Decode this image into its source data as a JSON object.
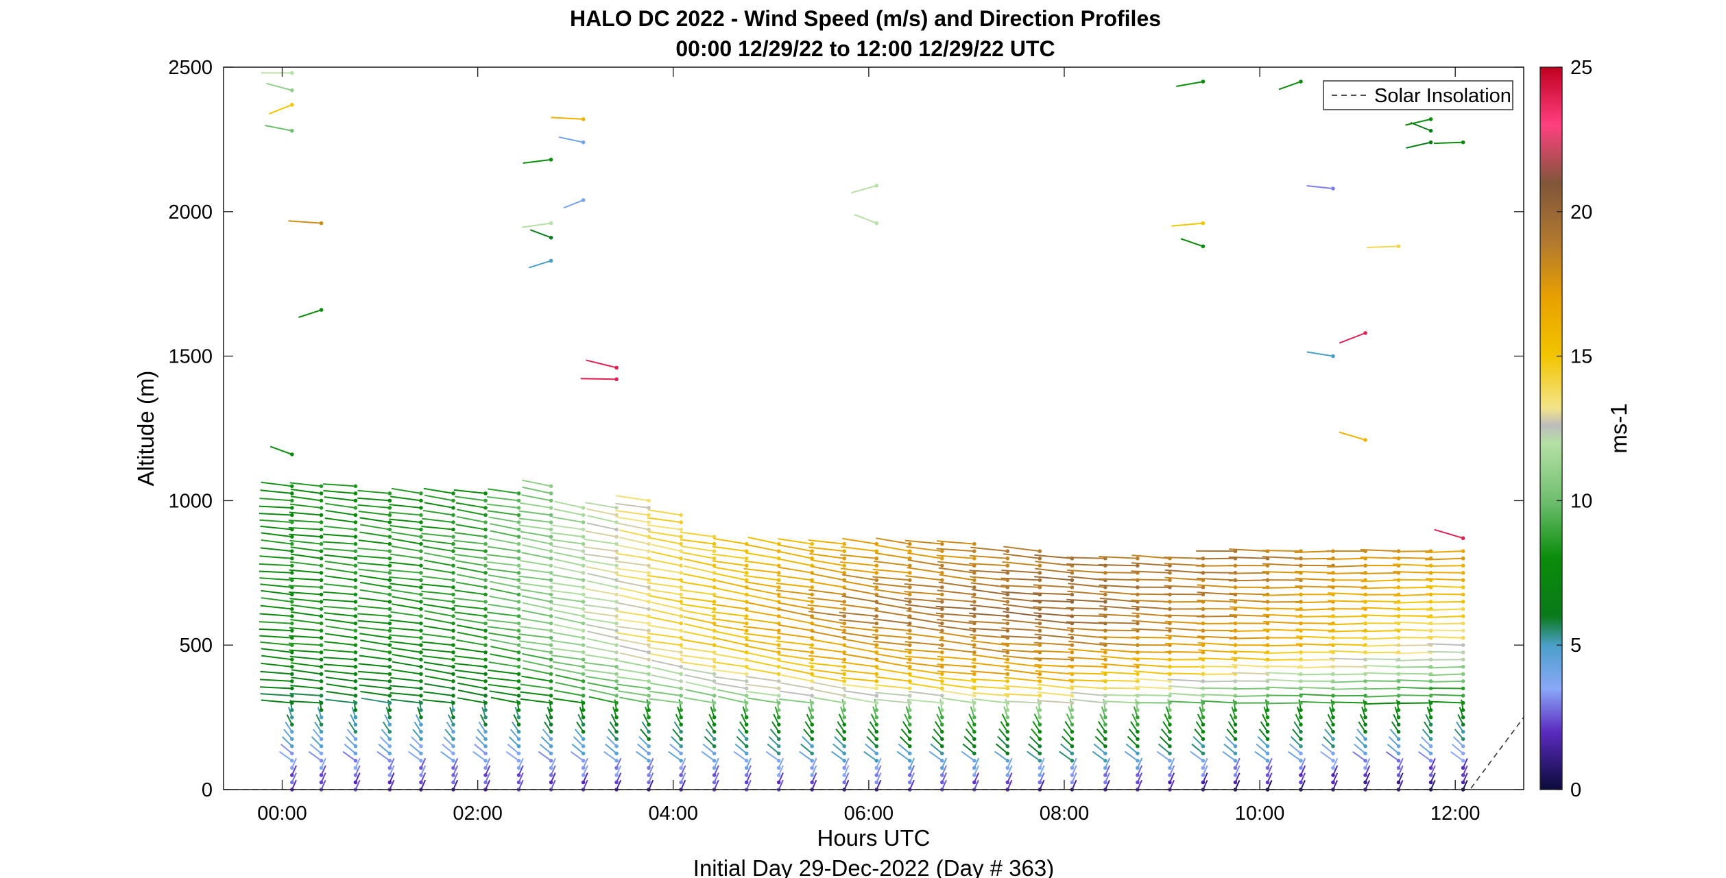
{
  "chart_data": {
    "type": "scatter",
    "title_line1": "HALO DC 2022 - Wind Speed (m/s) and Direction Profiles",
    "title_line2": "00:00 12/29/22 to 12:00 12/29/22  UTC",
    "xlabel": "Hours UTC",
    "ylabel": "Altitude (m)",
    "footer": "Initial Day 29-Dec-2022 (Day # 363)",
    "x_unit": "hours UTC",
    "xlim": [
      -0.6,
      12.7
    ],
    "ylim": [
      0,
      2500
    ],
    "x_ticks": [
      {
        "value": 0,
        "label": "00:00"
      },
      {
        "value": 2,
        "label": "02:00"
      },
      {
        "value": 4,
        "label": "04:00"
      },
      {
        "value": 6,
        "label": "06:00"
      },
      {
        "value": 8,
        "label": "08:00"
      },
      {
        "value": 10,
        "label": "10:00"
      },
      {
        "value": 12,
        "label": "12:00"
      }
    ],
    "y_ticks": [
      0,
      500,
      1000,
      1500,
      2000,
      2500
    ],
    "legend": {
      "entries": [
        "Solar Insolation"
      ],
      "placement": "top-right",
      "line_style": "dashed"
    },
    "grid": false,
    "colorbar": {
      "label": "ms-1",
      "range": [
        0,
        25
      ],
      "ticks": [
        0,
        5,
        10,
        15,
        20,
        25
      ],
      "stops": [
        [
          0,
          "#0b0b3b"
        ],
        [
          2,
          "#5b2bbf"
        ],
        [
          3.5,
          "#8aa8f8"
        ],
        [
          5,
          "#4a9fc8"
        ],
        [
          6,
          "#0a7a1a"
        ],
        [
          8,
          "#0a8c0a"
        ],
        [
          10,
          "#6fbf6f"
        ],
        [
          12,
          "#b6e0a6"
        ],
        [
          12.6,
          "#bcbcbc"
        ],
        [
          13.2,
          "#f3e48a"
        ],
        [
          15,
          "#f2c500"
        ],
        [
          17,
          "#e8a100"
        ],
        [
          19,
          "#b07830"
        ],
        [
          21,
          "#80563a"
        ],
        [
          23,
          "#ff4080"
        ],
        [
          25,
          "#c00020"
        ]
      ]
    },
    "profile_times": [
      0.1,
      0.4,
      0.75,
      1.1,
      1.42,
      1.75,
      2.08,
      2.42,
      2.75,
      3.08,
      3.42,
      3.75,
      4.08,
      4.42,
      4.75,
      5.08,
      5.42,
      5.75,
      6.08,
      6.42,
      6.75,
      7.08,
      7.42,
      7.75,
      8.08,
      8.42,
      8.75,
      9.08,
      9.42,
      9.75,
      10.08,
      10.42,
      10.75,
      11.08,
      11.42,
      11.75,
      12.08
    ],
    "profile_top_altitudes": [
      1050,
      1050,
      1050,
      1040,
      1040,
      1040,
      1040,
      1040,
      1060,
      980,
      990,
      1000,
      960,
      880,
      860,
      860,
      860,
      860,
      860,
      860,
      860,
      860,
      840,
      840,
      820,
      820,
      820,
      800,
      800,
      830,
      830,
      830,
      830,
      840,
      840,
      840,
      840
    ],
    "speed_profile_by_height": [
      {
        "name": "00:00",
        "heights": [
          0,
          200,
          500,
          800,
          1050
        ],
        "speeds": [
          2,
          5,
          8,
          8,
          8
        ]
      },
      {
        "name": "02:00",
        "heights": [
          0,
          200,
          500,
          800,
          1050
        ],
        "speeds": [
          2,
          5,
          8,
          9,
          8
        ]
      },
      {
        "name": "04:00",
        "heights": [
          0,
          200,
          300,
          500,
          800
        ],
        "speeds": [
          2,
          6,
          10,
          14,
          14
        ]
      },
      {
        "name": "06:00",
        "heights": [
          0,
          200,
          400,
          600,
          800
        ],
        "speeds": [
          2,
          7,
          16,
          19,
          17
        ]
      },
      {
        "name": "08:00",
        "heights": [
          0,
          200,
          400,
          600,
          800
        ],
        "speeds": [
          2,
          8,
          17,
          20,
          19
        ]
      },
      {
        "name": "10:00",
        "heights": [
          0,
          100,
          300,
          500,
          800
        ],
        "speeds": [
          1,
          4,
          9,
          17,
          19
        ]
      },
      {
        "name": "12:00",
        "heights": [
          0,
          100,
          300,
          500,
          800
        ],
        "speeds": [
          1,
          3,
          8,
          13,
          17
        ]
      }
    ],
    "upper_points": [
      {
        "t": 0.1,
        "alt": 2480,
        "spd": 12
      },
      {
        "t": 0.1,
        "alt": 2420,
        "spd": 11
      },
      {
        "t": 0.1,
        "alt": 2370,
        "spd": 15
      },
      {
        "t": 0.1,
        "alt": 2280,
        "spd": 10
      },
      {
        "t": 0.4,
        "alt": 1960,
        "spd": 18
      },
      {
        "t": 0.4,
        "alt": 1660,
        "spd": 8
      },
      {
        "t": 0.1,
        "alt": 1160,
        "spd": 8
      },
      {
        "t": 2.75,
        "alt": 2180,
        "spd": 8
      },
      {
        "t": 2.75,
        "alt": 1960,
        "spd": 12
      },
      {
        "t": 2.75,
        "alt": 1910,
        "spd": 6
      },
      {
        "t": 2.75,
        "alt": 1830,
        "spd": 5
      },
      {
        "t": 3.08,
        "alt": 2320,
        "spd": 16
      },
      {
        "t": 3.08,
        "alt": 2240,
        "spd": 4
      },
      {
        "t": 3.08,
        "alt": 2040,
        "spd": 4
      },
      {
        "t": 3.42,
        "alt": 1460,
        "spd": 24
      },
      {
        "t": 3.42,
        "alt": 1420,
        "spd": 24
      },
      {
        "t": 6.08,
        "alt": 2090,
        "spd": 12
      },
      {
        "t": 6.08,
        "alt": 1960,
        "spd": 12
      },
      {
        "t": 9.42,
        "alt": 2450,
        "spd": 8
      },
      {
        "t": 9.42,
        "alt": 1960,
        "spd": 15
      },
      {
        "t": 9.42,
        "alt": 1880,
        "spd": 8
      },
      {
        "t": 10.42,
        "alt": 2450,
        "spd": 8
      },
      {
        "t": 10.75,
        "alt": 2080,
        "spd": 3
      },
      {
        "t": 10.75,
        "alt": 1500,
        "spd": 5
      },
      {
        "t": 11.08,
        "alt": 1580,
        "spd": 24
      },
      {
        "t": 11.08,
        "alt": 1210,
        "spd": 16
      },
      {
        "t": 11.42,
        "alt": 1880,
        "spd": 14
      },
      {
        "t": 11.75,
        "alt": 2320,
        "spd": 8
      },
      {
        "t": 11.75,
        "alt": 2280,
        "spd": 6
      },
      {
        "t": 11.75,
        "alt": 2240,
        "spd": 6
      },
      {
        "t": 12.08,
        "alt": 2240,
        "spd": 8
      },
      {
        "t": 12.08,
        "alt": 870,
        "spd": 24
      }
    ]
  }
}
